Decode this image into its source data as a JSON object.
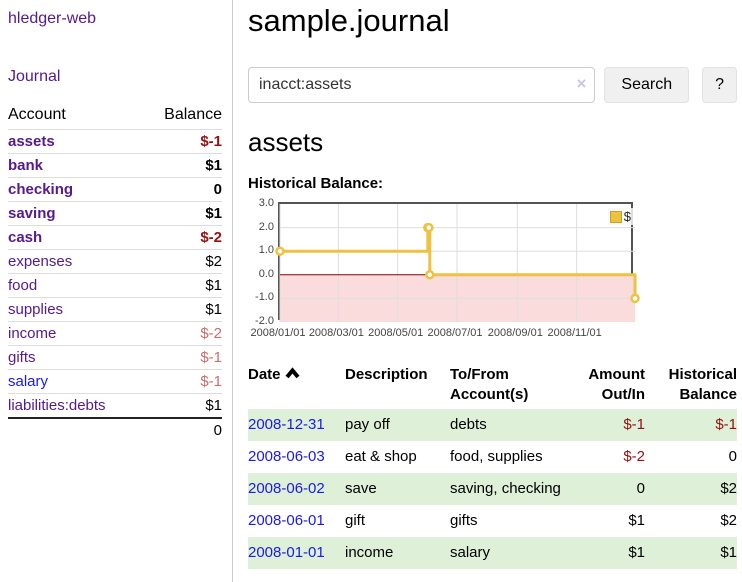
{
  "sidebar": {
    "app_title": "hledger-web",
    "nav": {
      "journal": "Journal"
    },
    "accounts_table": {
      "headers": {
        "account": "Account",
        "balance": "Balance"
      },
      "rows": [
        {
          "name": "assets",
          "balance": "$-1",
          "indent": 0,
          "bold": true,
          "neg": "strong"
        },
        {
          "name": "bank",
          "balance": "$1",
          "indent": 1,
          "bold": true,
          "neg": "none"
        },
        {
          "name": "checking",
          "balance": "0",
          "indent": 2,
          "bold": true,
          "neg": "none"
        },
        {
          "name": "saving",
          "balance": "$1",
          "indent": 2,
          "bold": true,
          "neg": "none"
        },
        {
          "name": "cash",
          "balance": "$-2",
          "indent": 1,
          "bold": true,
          "neg": "strong"
        },
        {
          "name": "expenses",
          "balance": "$2",
          "indent": 0,
          "bold": false,
          "neg": "none"
        },
        {
          "name": "food",
          "balance": "$1",
          "indent": 1,
          "bold": false,
          "neg": "none"
        },
        {
          "name": "supplies",
          "balance": "$1",
          "indent": 1,
          "bold": false,
          "neg": "none"
        },
        {
          "name": "income",
          "balance": "$-2",
          "indent": 0,
          "bold": false,
          "neg": "muted"
        },
        {
          "name": "gifts",
          "balance": "$-1",
          "indent": 1,
          "bold": false,
          "neg": "muted"
        },
        {
          "name": "salary",
          "balance": "$-1",
          "indent": 1,
          "bold": false,
          "neg": "muted",
          "link_state": "unvisited"
        },
        {
          "name": "liabilities:debts",
          "balance": "$1",
          "indent": 0,
          "bold": false,
          "neg": "none"
        }
      ],
      "total": "0"
    }
  },
  "main": {
    "title": "sample.journal",
    "search": {
      "query": "inacct:assets",
      "clear_icon": "×",
      "button_label": "Search",
      "help_label": "?"
    },
    "account_heading": "assets",
    "chart_heading": "Historical Balance:",
    "register_table": {
      "headers": {
        "date": "Date",
        "description": "Description",
        "accounts": "To/From Account(s)",
        "amount": "Amount Out/In",
        "balance": "Historical Balance"
      },
      "rows": [
        {
          "date": "2008-12-31",
          "description": "pay off",
          "accounts": "debts",
          "amount": "$-1",
          "balance": "$-1",
          "amount_neg": true,
          "balance_neg": true
        },
        {
          "date": "2008-06-03",
          "description": "eat & shop",
          "accounts": "food, supplies",
          "amount": "$-2",
          "balance": "0",
          "amount_neg": true,
          "balance_neg": false
        },
        {
          "date": "2008-06-02",
          "description": "save",
          "accounts": "saving, checking",
          "amount": "0",
          "balance": "$2",
          "amount_neg": false,
          "balance_neg": false
        },
        {
          "date": "2008-06-01",
          "description": "gift",
          "accounts": "gifts",
          "amount": "$1",
          "balance": "$2",
          "amount_neg": false,
          "balance_neg": false
        },
        {
          "date": "2008-01-01",
          "description": "income",
          "accounts": "salary",
          "amount": "$1",
          "balance": "$1",
          "amount_neg": false,
          "balance_neg": false
        }
      ]
    }
  },
  "chart_data": {
    "type": "line",
    "step": true,
    "title": "Historical Balance:",
    "x_range": [
      "2008-01-01",
      "2008-12-31"
    ],
    "ylim": [
      -2,
      3
    ],
    "series": [
      {
        "name": "$",
        "color": "#edc240",
        "points": [
          [
            "2008-01-01",
            1
          ],
          [
            "2008-06-01",
            2
          ],
          [
            "2008-06-02",
            2
          ],
          [
            "2008-06-03",
            0
          ],
          [
            "2008-12-31",
            -1
          ]
        ]
      }
    ],
    "y_ticks": [
      {
        "v": 3,
        "label": "3.0"
      },
      {
        "v": 2,
        "label": "2.0"
      },
      {
        "v": 1,
        "label": "1.0"
      },
      {
        "v": 0,
        "label": "0.0"
      },
      {
        "v": -1,
        "label": "-1.0"
      },
      {
        "v": -2,
        "label": "-2.0"
      }
    ],
    "x_ticks": [
      {
        "date": "2008-01-01",
        "label": "2008/01/01"
      },
      {
        "date": "2008-03-01",
        "label": "2008/03/01"
      },
      {
        "date": "2008-05-01",
        "label": "2008/05/01"
      },
      {
        "date": "2008-07-01",
        "label": "2008/07/01"
      },
      {
        "date": "2008-09-01",
        "label": "2008/09/01"
      },
      {
        "date": "2008-11-01",
        "label": "2008/11/01"
      }
    ],
    "legend_position": "top-right",
    "grid": true,
    "negative_region_color": "#fbdcdc",
    "zero_line_color": "#8b0000"
  },
  "colors": {
    "accent_purple": "#551a8b",
    "link_blue": "#1a1ae8",
    "negative_strong": "#941111",
    "negative_muted": "#c56f6f",
    "stripe_green": "#dff0d8",
    "series_gold": "#edc240"
  }
}
